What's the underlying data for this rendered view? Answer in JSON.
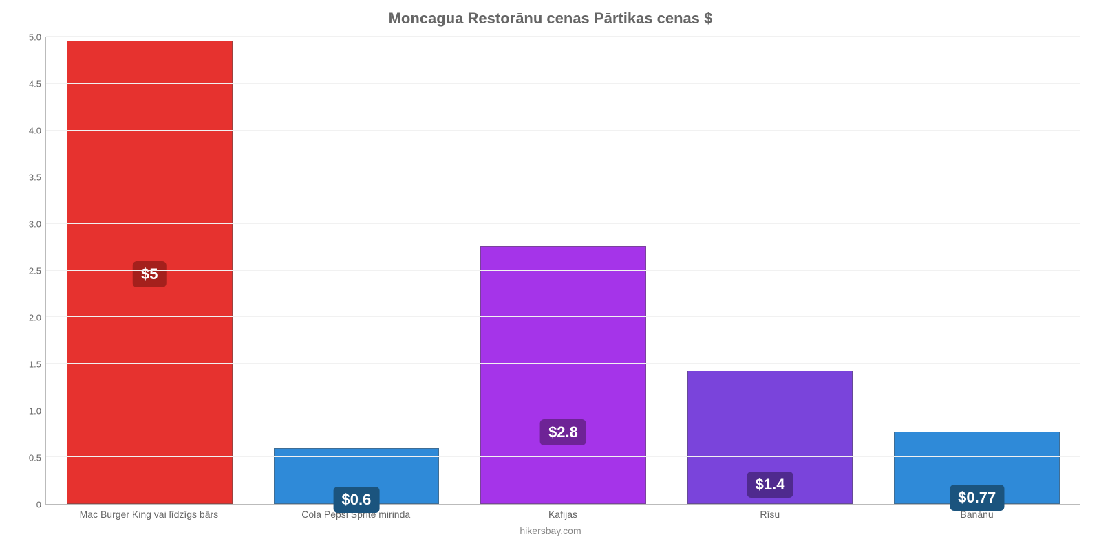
{
  "chart": {
    "type": "bar",
    "title": "Moncagua Restorānu cenas Pārtikas cenas $",
    "title_fontsize": 22,
    "title_color": "#666666",
    "source": "hikersbay.com",
    "source_fontsize": 14,
    "source_color": "#888888",
    "categories": [
      "Mac Burger King vai līdzīgs bārs",
      "Cola Pepsi Sprite mirinda",
      "Kafijas",
      "Rīsu",
      "Banānu"
    ],
    "values": [
      4.96,
      0.6,
      2.76,
      1.43,
      0.77
    ],
    "value_labels": [
      "$5",
      "$0.6",
      "$2.8",
      "$1.4",
      "$0.77"
    ],
    "bar_colors": [
      "#e6322f",
      "#2f8ad8",
      "#a534e9",
      "#7a44db",
      "#2f8ad8"
    ],
    "label_bg_colors": [
      "#a4201c",
      "#1b547e",
      "#6e2396",
      "#4f2a8e",
      "#1b547e"
    ],
    "label_fontsize": 22,
    "ylim": [
      0,
      5.0
    ],
    "yticks": [
      0,
      0.5,
      1.0,
      1.5,
      2.0,
      2.5,
      3.0,
      3.5,
      4.0,
      4.5,
      5.0
    ],
    "ytick_labels": [
      "0",
      "0.5",
      "1.0",
      "1.5",
      "2.0",
      "2.5",
      "3.0",
      "3.5",
      "4.0",
      "4.5",
      "5.0"
    ],
    "grid_color": "#f1f1f1",
    "axis_color": "#bbbbbb",
    "background_color": "#ffffff",
    "x_label_fontsize": 14,
    "x_label_color": "#666666",
    "y_label_fontsize": 13,
    "y_label_color": "#666666",
    "bar_width_pct": 80,
    "bar_border_color": "rgba(80,80,80,0.5)"
  }
}
